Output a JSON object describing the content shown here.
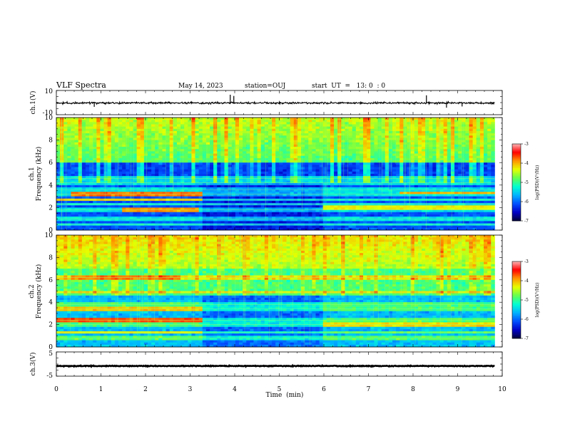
{
  "header": {
    "title": "VLF Spectra",
    "date": "May 14, 2023",
    "station": "station=OUJ",
    "start": "start  UT  =   13: 0  : 0"
  },
  "chart_data": [
    {
      "type": "line",
      "id": "ch1-waveform",
      "ylabel": "ch.1(V)",
      "ylim": [
        -10,
        10
      ],
      "ytick_labels": [
        "10",
        "-10"
      ],
      "baseline": -0.3,
      "noise_amplitude": 1.2,
      "spikes": [
        {
          "t": 0.85,
          "v": -3.5
        },
        {
          "t": 3.9,
          "v": 6.5
        },
        {
          "t": 3.98,
          "v": 5.5
        },
        {
          "t": 8.3,
          "v": 6
        },
        {
          "t": 8.75,
          "v": -4.2
        },
        {
          "t": 9.1,
          "v": -3.2
        }
      ]
    },
    {
      "type": "heatmap",
      "id": "ch1-spectrogram",
      "ylabel": "ch.1\nFrequency (kHz)",
      "ylim": [
        0,
        10
      ],
      "ytick_labels": [
        "0",
        "2",
        "4",
        "6",
        "8",
        "10"
      ],
      "colorbar": {
        "label": "log(PSD)(V²/Hz)",
        "range": [
          -7,
          -3
        ],
        "tick_labels": [
          "-3",
          "-4",
          "-5",
          "-6",
          "-7"
        ]
      },
      "bands_khz": [
        0.5,
        1.0,
        1.8,
        2.3,
        2.7,
        3.2,
        3.6,
        4.2,
        4.6
      ],
      "bright_bands": [
        {
          "f": 3.2,
          "t_range": [
            0.3,
            3.3
          ],
          "level": -3.8
        },
        {
          "f": 2.7,
          "t_range": [
            0,
            3.3
          ],
          "level": -4.1
        },
        {
          "f": 1.8,
          "t_range": [
            1.5,
            3.2
          ],
          "level": -3.9
        },
        {
          "f": 3.3,
          "t_range": [
            7.7,
            9.8
          ],
          "level": -4.0
        },
        {
          "f": 2.0,
          "t_range": [
            6.0,
            9.8
          ],
          "level": -4.3
        }
      ]
    },
    {
      "type": "heatmap",
      "id": "ch2-spectrogram",
      "ylabel": "ch.2\nFrequency (kHz)",
      "ylim": [
        0,
        10
      ],
      "ytick_labels": [
        "0",
        "2",
        "4",
        "6",
        "8",
        "10"
      ],
      "colorbar": {
        "label": "log(PSD)(V²/Hz)",
        "range": [
          -7,
          -3
        ],
        "tick_labels": [
          "-3",
          "-4",
          "-5",
          "-6",
          "-7"
        ]
      },
      "bands_khz": [
        0.8,
        1.3,
        2.0,
        2.4,
        3.4,
        3.8,
        4.9,
        6.2
      ],
      "bright_bands": [
        {
          "f": 6.2,
          "t_range": [
            0.3,
            2.8
          ],
          "level": -3.8
        },
        {
          "f": 2.4,
          "t_range": [
            0,
            3.3
          ],
          "level": -3.7
        },
        {
          "f": 3.4,
          "t_range": [
            0,
            3.3
          ],
          "level": -4.1
        },
        {
          "f": 1.3,
          "t_range": [
            0,
            3.3
          ],
          "level": -4.3
        },
        {
          "f": 2.0,
          "t_range": [
            6.0,
            9.8
          ],
          "level": -4.2
        }
      ]
    },
    {
      "type": "line",
      "id": "ch3-waveform",
      "ylabel": "ch.3(V)",
      "ylim": [
        -5,
        5
      ],
      "ytick_labels": [
        "5",
        "-5"
      ],
      "baseline": -0.8,
      "noise_amplitude": 0.25,
      "spikes": []
    }
  ],
  "xaxis": {
    "label": "Time  (min)",
    "range": [
      0,
      10
    ],
    "data_end": 9.83,
    "tick_labels": [
      "0",
      "1",
      "2",
      "3",
      "4",
      "5",
      "6",
      "7",
      "8",
      "9",
      "10"
    ]
  },
  "colormap": [
    "#00003a",
    "#0000c8",
    "#0050ff",
    "#00b4ff",
    "#00ffd2",
    "#64ff50",
    "#e6ff00",
    "#ff9600",
    "#ff0000",
    "#ffb4b4"
  ]
}
